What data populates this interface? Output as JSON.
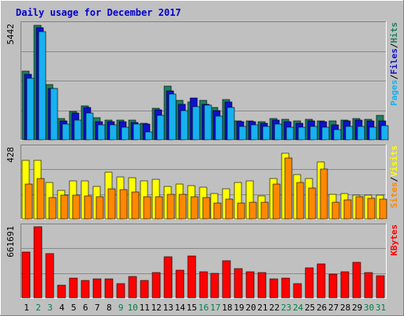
{
  "chart_data": [
    {
      "type": "bar",
      "title": "Daily usage for December 2017",
      "panel": "hits-files-pages",
      "ymax_label": "5442",
      "ylim": [
        0,
        5442
      ],
      "grid": true,
      "legend": [
        "Hits",
        "/",
        "Files",
        "/",
        "Pages"
      ],
      "categories": [
        "1",
        "2",
        "3",
        "4",
        "5",
        "6",
        "7",
        "8",
        "9",
        "10",
        "11",
        "12",
        "13",
        "14",
        "15",
        "16",
        "17",
        "18",
        "19",
        "20",
        "21",
        "22",
        "23",
        "24",
        "25",
        "26",
        "27",
        "28",
        "29",
        "30",
        "31"
      ],
      "series": [
        {
          "name": "Hits",
          "color": "#1f7f5f",
          "values": [
            3240,
            5390,
            2600,
            1020,
            1350,
            1590,
            1050,
            920,
            920,
            920,
            770,
            1490,
            2550,
            1870,
            1790,
            1850,
            1520,
            1910,
            880,
            880,
            850,
            990,
            970,
            880,
            960,
            880,
            880,
            920,
            1000,
            970,
            1140
          ]
        },
        {
          "name": "Files",
          "color": "#1010cc",
          "values": [
            3090,
            5300,
            2420,
            890,
            1250,
            1510,
            870,
            860,
            840,
            830,
            760,
            1410,
            2320,
            1690,
            1960,
            1680,
            1390,
            1800,
            860,
            850,
            800,
            930,
            870,
            790,
            890,
            840,
            720,
            890,
            940,
            900,
            900
          ]
        },
        {
          "name": "Pages",
          "color": "#18b0ee",
          "values": [
            2920,
            5120,
            2410,
            760,
            920,
            1250,
            700,
            710,
            610,
            760,
            370,
            1170,
            2180,
            1390,
            1560,
            1630,
            1110,
            1510,
            650,
            690,
            640,
            730,
            600,
            590,
            650,
            610,
            470,
            640,
            650,
            600,
            670
          ]
        }
      ]
    },
    {
      "type": "bar",
      "panel": "visits-sites",
      "ymax_label": "428",
      "ylim": [
        0,
        428
      ],
      "grid": true,
      "legend": [
        "Visits",
        "/",
        "Sites"
      ],
      "categories": [
        "1",
        "2",
        "3",
        "4",
        "5",
        "6",
        "7",
        "8",
        "9",
        "10",
        "11",
        "12",
        "13",
        "14",
        "15",
        "16",
        "17",
        "18",
        "19",
        "20",
        "21",
        "22",
        "23",
        "24",
        "25",
        "26",
        "27",
        "28",
        "29",
        "30",
        "31"
      ],
      "series": [
        {
          "name": "Visits",
          "color": "#ffff00",
          "values": [
            354,
            350,
            220,
            170,
            229,
            227,
            197,
            280,
            252,
            248,
            227,
            237,
            197,
            211,
            200,
            188,
            151,
            182,
            220,
            229,
            137,
            244,
            393,
            265,
            244,
            341,
            147,
            151,
            145,
            145,
            145
          ]
        },
        {
          "name": "Sites",
          "color": "#ff8800",
          "values": [
            211,
            244,
            127,
            141,
            141,
            136,
            131,
            180,
            178,
            163,
            135,
            132,
            146,
            149,
            135,
            128,
            94,
            120,
            94,
            99,
            98,
            210,
            366,
            220,
            187,
            298,
            99,
            116,
            132,
            126,
            118
          ]
        }
      ]
    },
    {
      "type": "bar",
      "panel": "kbytes",
      "ymax_label": "661691",
      "ylim": [
        0,
        661691
      ],
      "grid": true,
      "legend": [
        "KBytes"
      ],
      "categories": [
        "1",
        "2",
        "3",
        "4",
        "5",
        "6",
        "7",
        "8",
        "9",
        "10",
        "11",
        "12",
        "13",
        "14",
        "15",
        "16",
        "17",
        "18",
        "19",
        "20",
        "21",
        "22",
        "23",
        "24",
        "25",
        "26",
        "27",
        "28",
        "29",
        "30",
        "31"
      ],
      "series": [
        {
          "name": "KBytes",
          "color": "#ff0000",
          "values": [
            423000,
            661691,
            409000,
            118000,
            186000,
            165000,
            179000,
            175000,
            132000,
            200000,
            162000,
            233000,
            380000,
            256000,
            387000,
            240000,
            230000,
            348000,
            271000,
            244000,
            233000,
            178000,
            186000,
            132000,
            282000,
            319000,
            224000,
            244000,
            331000,
            233000,
            206000
          ]
        }
      ]
    }
  ],
  "x_labels": [
    {
      "text": "1",
      "weekend": false
    },
    {
      "text": "2",
      "weekend": true
    },
    {
      "text": "3",
      "weekend": true
    },
    {
      "text": "4",
      "weekend": false
    },
    {
      "text": "5",
      "weekend": false
    },
    {
      "text": "6",
      "weekend": false
    },
    {
      "text": "7",
      "weekend": false
    },
    {
      "text": "8",
      "weekend": false
    },
    {
      "text": "9",
      "weekend": true
    },
    {
      "text": "10",
      "weekend": true
    },
    {
      "text": "11",
      "weekend": false
    },
    {
      "text": "12",
      "weekend": false
    },
    {
      "text": "13",
      "weekend": false
    },
    {
      "text": "14",
      "weekend": false
    },
    {
      "text": "15",
      "weekend": false
    },
    {
      "text": "16",
      "weekend": true
    },
    {
      "text": "17",
      "weekend": true
    },
    {
      "text": "18",
      "weekend": false
    },
    {
      "text": "19",
      "weekend": false
    },
    {
      "text": "20",
      "weekend": false
    },
    {
      "text": "21",
      "weekend": false
    },
    {
      "text": "22",
      "weekend": false
    },
    {
      "text": "23",
      "weekend": true
    },
    {
      "text": "24",
      "weekend": true
    },
    {
      "text": "25",
      "weekend": false
    },
    {
      "text": "26",
      "weekend": false
    },
    {
      "text": "27",
      "weekend": false
    },
    {
      "text": "28",
      "weekend": false
    },
    {
      "text": "29",
      "weekend": false
    },
    {
      "text": "30",
      "weekend": true
    },
    {
      "text": "31",
      "weekend": true
    }
  ],
  "colors": {
    "background": "#c0c0c0",
    "frame_light": "#ffffff",
    "frame_dark": "#808080",
    "grid": "#8a8a8a",
    "title": "#0000cc",
    "axis_text": "#000000",
    "weekday_label": "#000000",
    "weekend_label": "#00804c",
    "legend_slash": "#000000"
  }
}
